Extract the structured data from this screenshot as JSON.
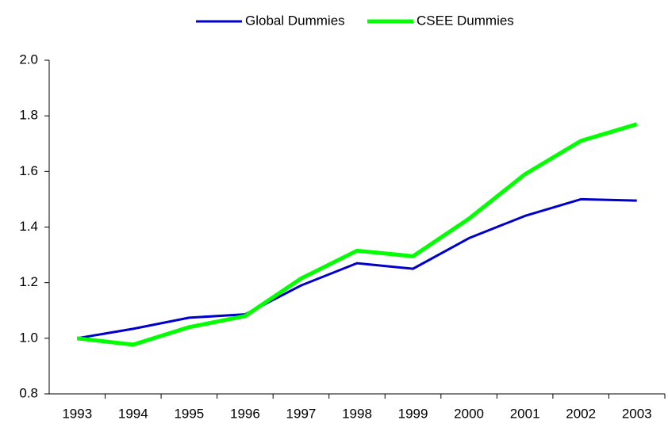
{
  "chart_data": {
    "type": "line",
    "categories": [
      "1993",
      "1994",
      "1995",
      "1996",
      "1997",
      "1998",
      "1999",
      "2000",
      "2001",
      "2002",
      "2003"
    ],
    "series": [
      {
        "name": "Global Dummies",
        "color": "#0000cc",
        "values": [
          1.0,
          1.034,
          1.074,
          1.086,
          1.19,
          1.27,
          1.25,
          1.36,
          1.44,
          1.5,
          1.495
        ]
      },
      {
        "name": "CSEE Dummies",
        "color": "#00ff00",
        "values": [
          1.0,
          0.977,
          1.04,
          1.08,
          1.215,
          1.315,
          1.295,
          1.43,
          1.59,
          1.71,
          1.77
        ]
      }
    ],
    "ylim": [
      0.8,
      2.0
    ],
    "yticks": [
      0.8,
      {
        "value": 1,
        "label": "1.0"
      },
      1.2,
      1.4,
      1.6,
      1.8,
      {
        "value": 2,
        "label": "2.0"
      }
    ],
    "legend": "top"
  }
}
